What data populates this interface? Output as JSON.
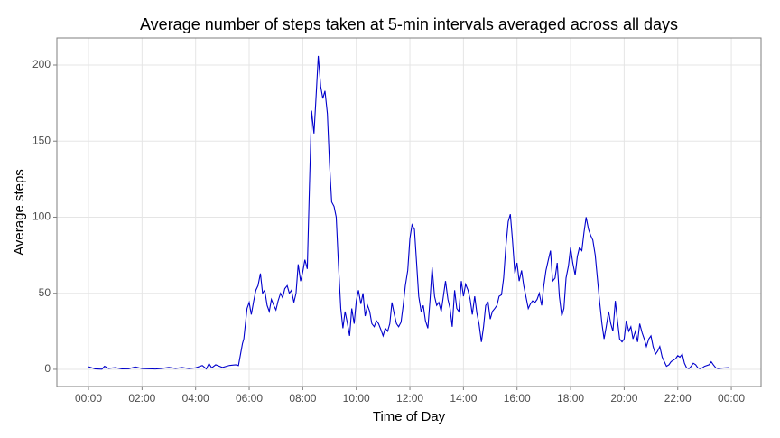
{
  "chart_data": {
    "type": "line",
    "title": "Average number of steps taken at 5-min intervals averaged across all days",
    "x_label": "Time of Day",
    "y_label": "Average steps",
    "xlim": [
      -1.18,
      25.11
    ],
    "ylim": [
      -11.3,
      217.8
    ],
    "xticks": [
      {
        "value": 0,
        "label": "00:00"
      },
      {
        "value": 2,
        "label": "02:00"
      },
      {
        "value": 4,
        "label": "04:00"
      },
      {
        "value": 6,
        "label": "06:00"
      },
      {
        "value": 8,
        "label": "08:00"
      },
      {
        "value": 10,
        "label": "10:00"
      },
      {
        "value": 12,
        "label": "12:00"
      },
      {
        "value": 14,
        "label": "14:00"
      },
      {
        "value": 16,
        "label": "16:00"
      },
      {
        "value": 18,
        "label": "18:00"
      },
      {
        "value": 20,
        "label": "20:00"
      },
      {
        "value": 22,
        "label": "22:00"
      },
      {
        "value": 24,
        "label": "00:00"
      }
    ],
    "yticks": [
      0,
      50,
      100,
      150,
      200
    ],
    "grid": true,
    "x": [
      0,
      0.25,
      0.5,
      0.6,
      0.75,
      1,
      1.25,
      1.5,
      1.75,
      2,
      2.25,
      2.5,
      2.75,
      3,
      3.25,
      3.5,
      3.75,
      4,
      4.25,
      4.4,
      4.5,
      4.6,
      4.75,
      5,
      5.25,
      5.5,
      5.6,
      5.75,
      5.8,
      5.92,
      6,
      6.08,
      6.17,
      6.25,
      6.33,
      6.42,
      6.5,
      6.58,
      6.67,
      6.75,
      6.83,
      6.92,
      7,
      7.08,
      7.17,
      7.25,
      7.33,
      7.42,
      7.5,
      7.58,
      7.67,
      7.75,
      7.83,
      7.92,
      8,
      8.08,
      8.17,
      8.25,
      8.33,
      8.42,
      8.5,
      8.58,
      8.67,
      8.75,
      8.83,
      8.92,
      9,
      9.08,
      9.17,
      9.25,
      9.33,
      9.42,
      9.5,
      9.58,
      9.67,
      9.75,
      9.83,
      9.92,
      10,
      10.08,
      10.17,
      10.25,
      10.33,
      10.42,
      10.5,
      10.58,
      10.67,
      10.75,
      10.83,
      10.92,
      11,
      11.08,
      11.17,
      11.25,
      11.33,
      11.42,
      11.5,
      11.58,
      11.67,
      11.75,
      11.83,
      11.92,
      12,
      12.08,
      12.17,
      12.25,
      12.33,
      12.42,
      12.5,
      12.58,
      12.67,
      12.75,
      12.83,
      12.92,
      13,
      13.08,
      13.17,
      13.25,
      13.33,
      13.42,
      13.5,
      13.58,
      13.67,
      13.75,
      13.83,
      13.92,
      14,
      14.08,
      14.17,
      14.25,
      14.33,
      14.42,
      14.5,
      14.58,
      14.67,
      14.75,
      14.83,
      14.92,
      15,
      15.08,
      15.17,
      15.25,
      15.33,
      15.42,
      15.5,
      15.58,
      15.67,
      15.75,
      15.83,
      15.92,
      16,
      16.08,
      16.17,
      16.25,
      16.33,
      16.42,
      16.5,
      16.58,
      16.67,
      16.75,
      16.83,
      16.92,
      17,
      17.08,
      17.17,
      17.25,
      17.33,
      17.42,
      17.5,
      17.58,
      17.67,
      17.75,
      17.83,
      17.92,
      18,
      18.08,
      18.17,
      18.25,
      18.33,
      18.42,
      18.5,
      18.58,
      18.67,
      18.75,
      18.83,
      18.92,
      19,
      19.08,
      19.17,
      19.25,
      19.33,
      19.42,
      19.5,
      19.58,
      19.67,
      19.75,
      19.83,
      19.92,
      20,
      20.08,
      20.17,
      20.25,
      20.33,
      20.42,
      20.5,
      20.58,
      20.67,
      20.75,
      20.83,
      20.92,
      21,
      21.08,
      21.17,
      21.25,
      21.33,
      21.42,
      21.5,
      21.58,
      21.67,
      21.75,
      21.83,
      21.92,
      22,
      22.08,
      22.17,
      22.25,
      22.33,
      22.42,
      22.5,
      22.58,
      22.67,
      22.75,
      22.83,
      22.92,
      23,
      23.17,
      23.25,
      23.33,
      23.42,
      23.5,
      23.67,
      23.92
    ],
    "series": [
      {
        "name": "Average steps",
        "color": "#0000cc",
        "values": [
          1.7,
          0.3,
          0.1,
          2,
          0.6,
          1.1,
          0.3,
          0.4,
          1.6,
          0.5,
          0.4,
          0.2,
          0.6,
          1.3,
          0.6,
          1.2,
          0.5,
          1,
          2.5,
          0.3,
          3.8,
          1,
          3,
          1.2,
          2.5,
          3,
          2.5,
          17,
          20,
          40,
          44,
          36,
          45,
          52,
          55,
          63,
          50,
          52,
          42,
          38,
          46,
          42,
          39,
          45,
          50,
          47,
          53,
          55,
          50,
          52,
          44,
          50,
          69,
          58,
          64,
          72,
          66,
          120,
          170,
          155,
          180,
          206,
          186,
          178,
          183,
          168,
          135,
          110,
          107,
          100,
          70,
          40,
          27,
          38,
          30,
          22,
          40,
          30,
          45,
          52,
          43,
          50,
          35,
          42,
          38,
          30,
          28,
          32,
          30,
          26,
          22,
          27,
          25,
          30,
          44,
          36,
          30,
          28,
          31,
          42,
          55,
          65,
          86,
          95,
          92,
          70,
          48,
          38,
          42,
          32,
          27,
          45,
          67,
          48,
          42,
          44,
          38,
          48,
          58,
          46,
          40,
          28,
          52,
          40,
          38,
          58,
          48,
          56,
          52,
          46,
          36,
          48,
          37,
          30,
          18,
          28,
          42,
          44,
          33,
          38,
          40,
          42,
          48,
          49,
          60,
          80,
          97,
          102,
          85,
          63,
          70,
          58,
          65,
          55,
          48,
          40,
          43,
          45,
          44,
          46,
          50,
          42,
          55,
          65,
          72,
          78,
          58,
          60,
          70,
          48,
          35,
          40,
          60,
          68,
          80,
          70,
          62,
          74,
          80,
          78,
          90,
          100,
          92,
          88,
          85,
          75,
          60,
          45,
          30,
          20,
          28,
          38,
          30,
          25,
          45,
          32,
          20,
          18,
          20,
          32,
          25,
          28,
          20,
          25,
          18,
          30,
          24,
          20,
          15,
          20,
          22,
          15,
          10,
          12,
          15,
          8,
          5,
          2,
          3,
          5,
          6,
          7,
          9,
          8,
          10,
          4,
          1,
          0.5,
          2,
          4,
          3,
          1,
          0.5,
          1,
          2,
          3,
          5,
          3,
          1,
          0.5,
          0.8,
          1.1
        ]
      }
    ]
  }
}
